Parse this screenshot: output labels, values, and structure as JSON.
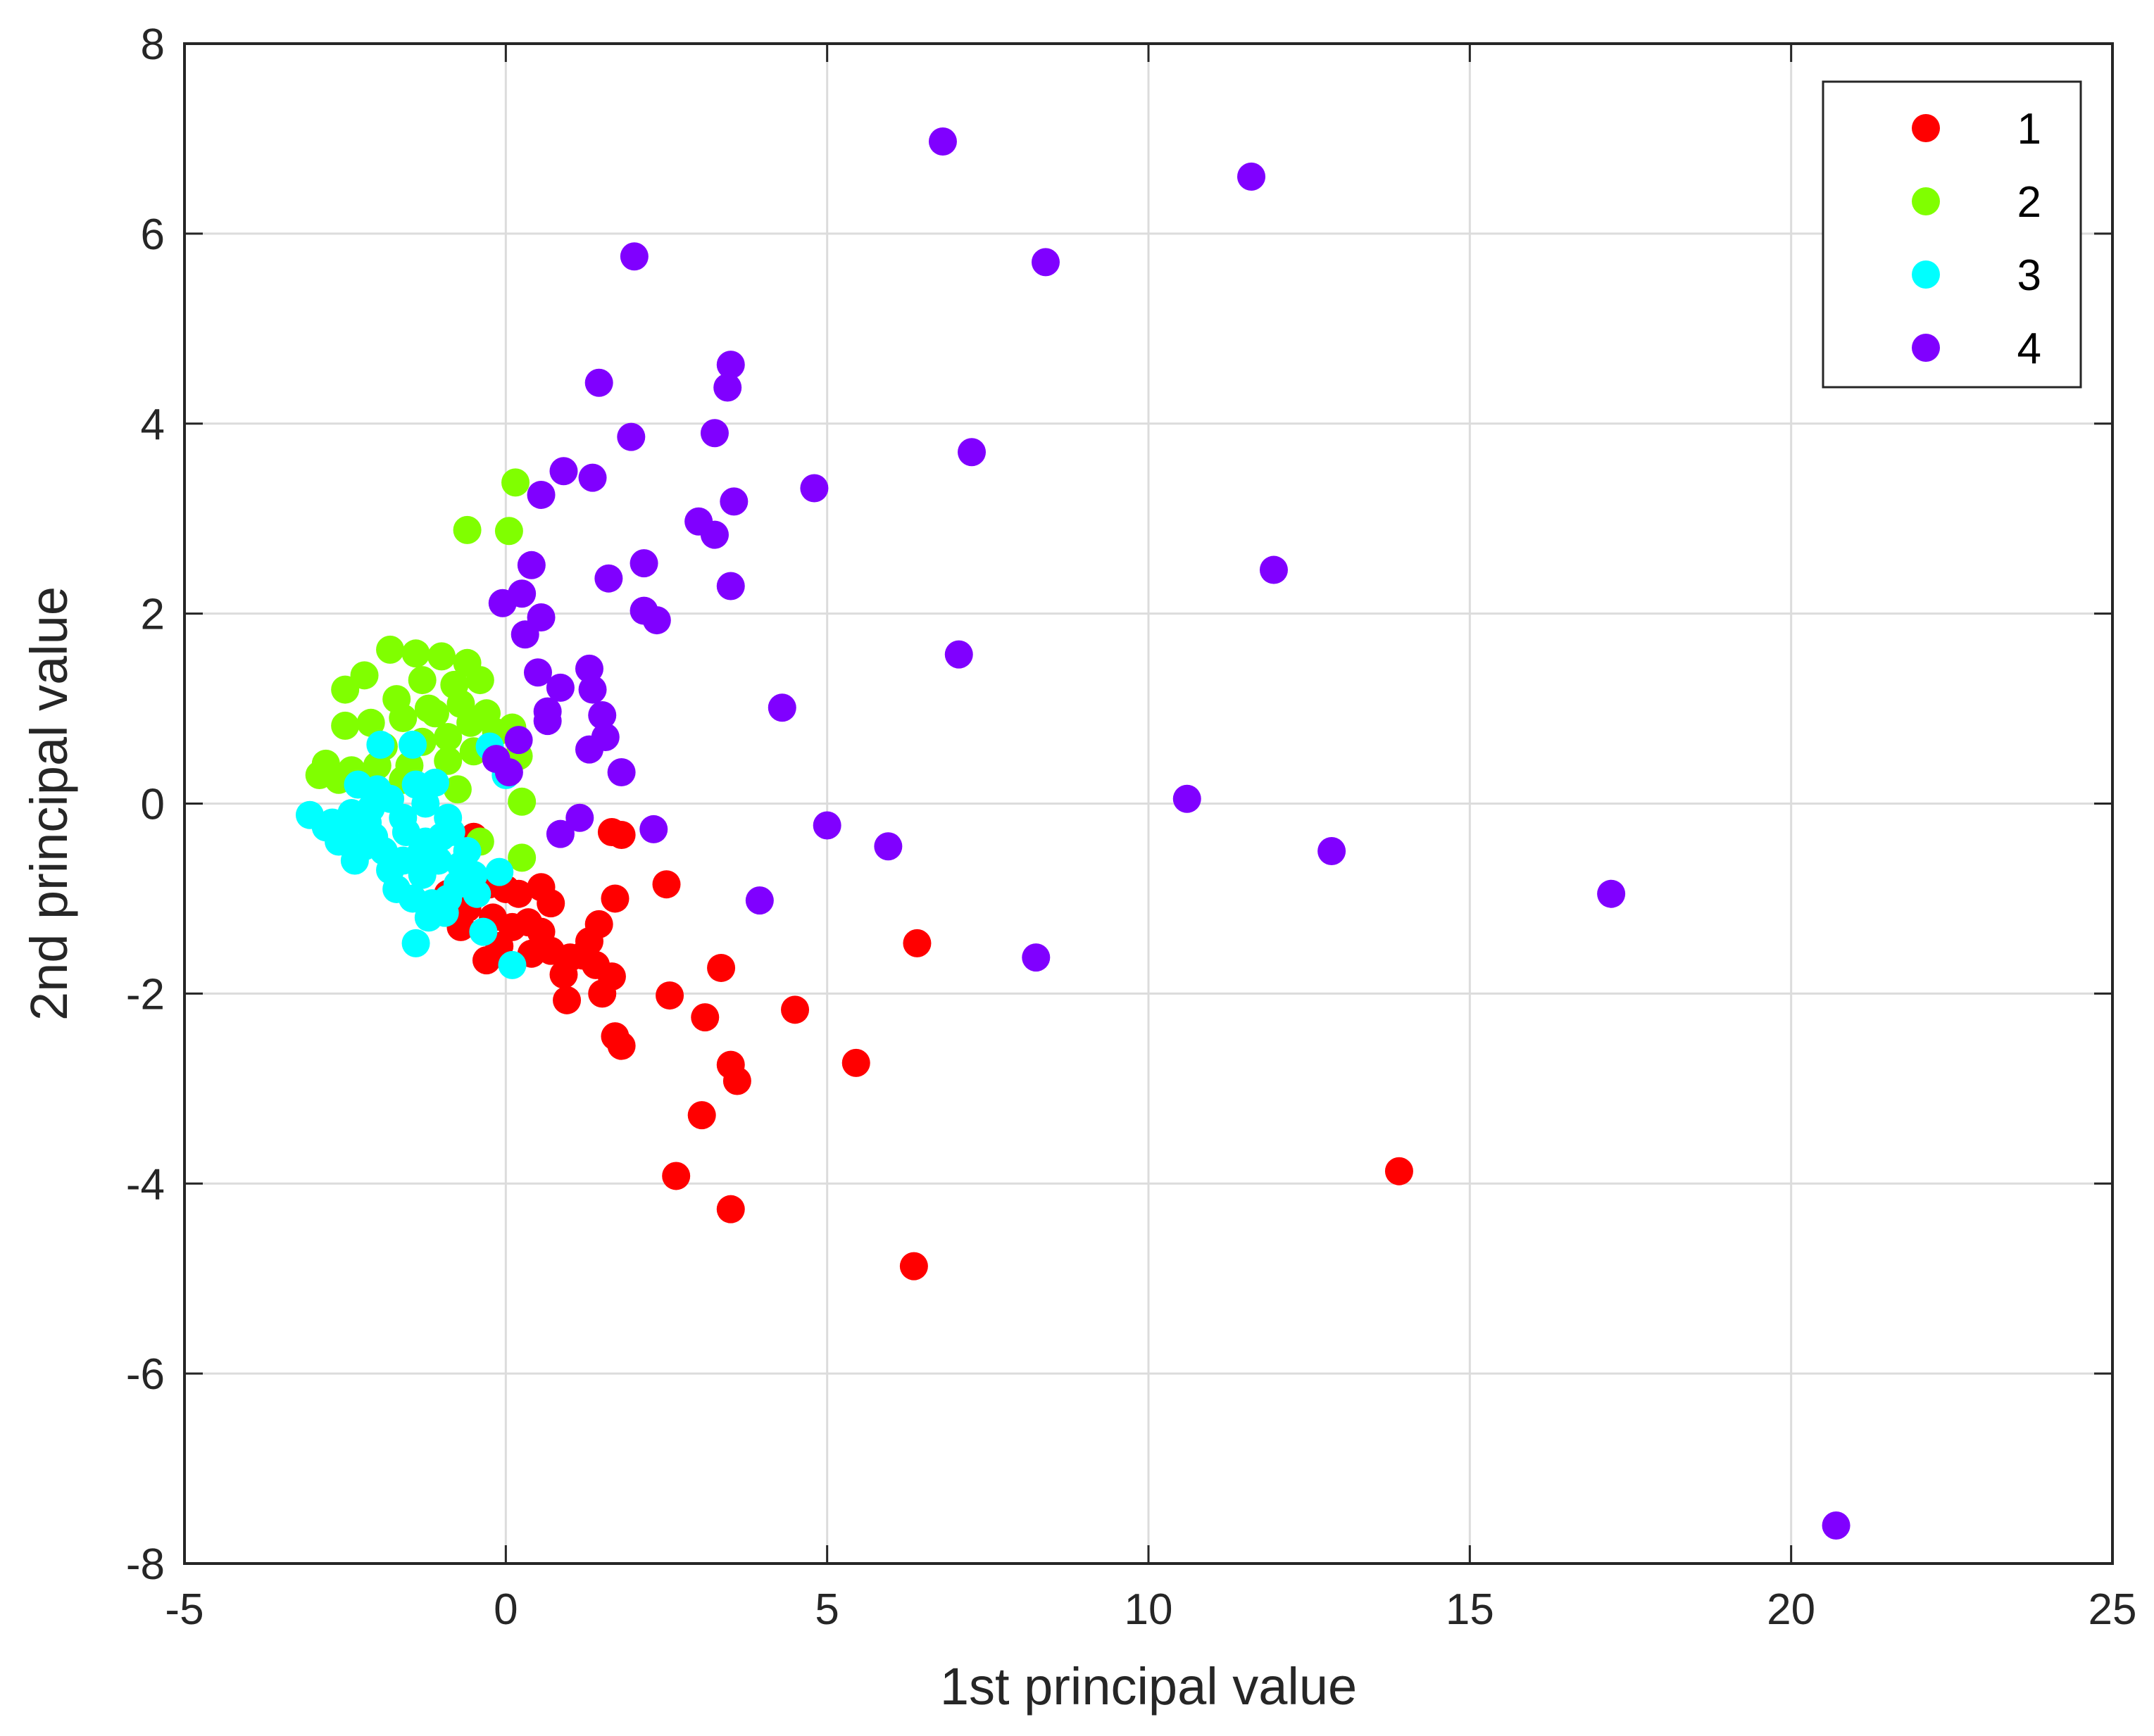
{
  "chart_data": {
    "type": "scatter",
    "title": "",
    "xlabel": "1st principal value",
    "ylabel": "2nd principal value",
    "xlim": [
      -5,
      25
    ],
    "ylim": [
      -8,
      8
    ],
    "xticks": [
      -5,
      0,
      5,
      10,
      15,
      20,
      25
    ],
    "yticks": [
      -8,
      -6,
      -4,
      -2,
      0,
      2,
      4,
      6,
      8
    ],
    "grid": true,
    "legend_position": "top-right",
    "series": [
      {
        "name": "1",
        "color": "#ff0000",
        "points": [
          [
            13.9,
            -3.87
          ],
          [
            6.4,
            -1.47
          ],
          [
            6.35,
            -4.87
          ],
          [
            5.45,
            -2.73
          ],
          [
            4.5,
            -2.17
          ],
          [
            3.35,
            -1.73
          ],
          [
            3.6,
            -2.92
          ],
          [
            3.5,
            -2.75
          ],
          [
            3.5,
            -4.27
          ],
          [
            3.1,
            -2.25
          ],
          [
            3.05,
            -3.28
          ],
          [
            2.65,
            -3.92
          ],
          [
            2.55,
            -2.02
          ],
          [
            2.5,
            -0.85
          ],
          [
            1.8,
            -0.33
          ],
          [
            1.65,
            -0.3
          ],
          [
            1.7,
            -1.0
          ],
          [
            1.65,
            -1.82
          ],
          [
            1.7,
            -2.45
          ],
          [
            1.8,
            -2.55
          ],
          [
            1.5,
            -2.0
          ],
          [
            1.4,
            -1.7
          ],
          [
            1.45,
            -1.27
          ],
          [
            1.3,
            -1.45
          ],
          [
            1.2,
            -1.6
          ],
          [
            1.0,
            -1.62
          ],
          [
            0.95,
            -2.07
          ],
          [
            0.9,
            -1.8
          ],
          [
            0.7,
            -1.05
          ],
          [
            0.7,
            -1.55
          ],
          [
            0.55,
            -1.35
          ],
          [
            0.55,
            -0.88
          ],
          [
            0.4,
            -1.58
          ],
          [
            0.35,
            -1.25
          ],
          [
            0.2,
            -0.95
          ],
          [
            0.1,
            -1.3
          ],
          [
            0.0,
            -0.9
          ],
          [
            -0.1,
            -1.5
          ],
          [
            -0.2,
            -1.2
          ],
          [
            -0.25,
            -0.85
          ],
          [
            -0.3,
            -1.65
          ],
          [
            -0.5,
            -0.35
          ],
          [
            -0.6,
            -1.1
          ],
          [
            -0.7,
            -1.3
          ],
          [
            -0.9,
            -0.95
          ]
        ]
      },
      {
        "name": "2",
        "color": "#80ff00",
        "points": [
          [
            0.15,
            3.38
          ],
          [
            0.05,
            2.87
          ],
          [
            -0.6,
            2.88
          ],
          [
            -1.8,
            1.62
          ],
          [
            -1.4,
            1.58
          ],
          [
            -1.0,
            1.55
          ],
          [
            -0.6,
            1.48
          ],
          [
            -2.2,
            1.35
          ],
          [
            -2.5,
            1.2
          ],
          [
            -1.7,
            1.1
          ],
          [
            -1.3,
            1.3
          ],
          [
            -0.8,
            1.25
          ],
          [
            -0.4,
            1.3
          ],
          [
            -2.1,
            0.85
          ],
          [
            -2.5,
            0.82
          ],
          [
            -1.6,
            0.9
          ],
          [
            -1.1,
            0.95
          ],
          [
            -0.7,
            1.05
          ],
          [
            -0.3,
            0.95
          ],
          [
            -0.15,
            0.75
          ],
          [
            0.1,
            0.8
          ],
          [
            -1.9,
            0.6
          ],
          [
            -1.3,
            0.65
          ],
          [
            -0.9,
            0.7
          ],
          [
            -0.5,
            0.55
          ],
          [
            -2.8,
            0.42
          ],
          [
            -2.4,
            0.35
          ],
          [
            -2.0,
            0.4
          ],
          [
            -1.5,
            0.4
          ],
          [
            -0.9,
            0.45
          ],
          [
            0.2,
            0.5
          ],
          [
            -2.6,
            0.25
          ],
          [
            -2.9,
            0.3
          ],
          [
            -0.75,
            0.15
          ],
          [
            0.25,
            0.02
          ],
          [
            -0.4,
            -0.4
          ],
          [
            0.25,
            -0.57
          ],
          [
            -1.2,
            1.0
          ],
          [
            -0.55,
            0.85
          ],
          [
            -1.6,
            0.25
          ]
        ]
      },
      {
        "name": "3",
        "color": "#00ffff",
        "points": [
          [
            0.1,
            -1.7
          ],
          [
            -0.35,
            -1.35
          ],
          [
            -0.1,
            -0.72
          ],
          [
            0.0,
            0.3
          ],
          [
            -0.25,
            0.6
          ],
          [
            -1.4,
            -1.47
          ],
          [
            -0.9,
            -1.0
          ],
          [
            -1.2,
            -1.2
          ],
          [
            -0.75,
            -0.85
          ],
          [
            -1.05,
            -0.6
          ],
          [
            -1.3,
            -0.75
          ],
          [
            -1.6,
            -0.6
          ],
          [
            -1.9,
            -0.5
          ],
          [
            -2.2,
            -0.45
          ],
          [
            -2.5,
            -0.35
          ],
          [
            -2.8,
            -0.25
          ],
          [
            -3.05,
            -0.12
          ],
          [
            -2.7,
            -0.2
          ],
          [
            -2.4,
            -0.1
          ],
          [
            -2.1,
            -0.05
          ],
          [
            -1.8,
            0.05
          ],
          [
            -2.0,
            0.15
          ],
          [
            -2.3,
            0.2
          ],
          [
            -1.4,
            0.2
          ],
          [
            -1.1,
            0.22
          ],
          [
            -0.85,
            -0.3
          ],
          [
            -0.6,
            -0.5
          ],
          [
            -0.5,
            -0.75
          ],
          [
            -0.45,
            -0.95
          ],
          [
            -1.55,
            -0.3
          ],
          [
            -1.25,
            -0.4
          ],
          [
            -1.0,
            -0.35
          ],
          [
            -1.7,
            -0.9
          ],
          [
            -1.45,
            -1.0
          ],
          [
            -1.15,
            -1.05
          ],
          [
            -0.95,
            -1.15
          ],
          [
            -1.8,
            -0.7
          ],
          [
            -2.05,
            -0.35
          ],
          [
            -2.6,
            -0.4
          ],
          [
            -2.35,
            -0.6
          ],
          [
            -1.95,
            0.62
          ],
          [
            -1.45,
            0.62
          ],
          [
            -1.25,
            0.0
          ],
          [
            -0.9,
            -0.15
          ],
          [
            -1.6,
            -0.15
          ],
          [
            -0.7,
            -0.65
          ],
          [
            -2.15,
            -0.2
          ],
          [
            -1.35,
            -0.55
          ]
        ]
      },
      {
        "name": "4",
        "color": "#8000ff",
        "points": [
          [
            6.8,
            6.97
          ],
          [
            11.6,
            6.6
          ],
          [
            8.4,
            5.7
          ],
          [
            2.0,
            5.76
          ],
          [
            3.5,
            4.62
          ],
          [
            3.45,
            4.38
          ],
          [
            1.45,
            4.43
          ],
          [
            3.25,
            3.9
          ],
          [
            7.25,
            3.7
          ],
          [
            1.95,
            3.86
          ],
          [
            4.8,
            3.32
          ],
          [
            3.55,
            3.18
          ],
          [
            0.9,
            3.5
          ],
          [
            1.35,
            3.43
          ],
          [
            0.55,
            3.25
          ],
          [
            3.0,
            2.97
          ],
          [
            3.25,
            2.83
          ],
          [
            11.95,
            2.46
          ],
          [
            0.4,
            2.51
          ],
          [
            2.15,
            2.53
          ],
          [
            1.6,
            2.37
          ],
          [
            3.5,
            2.29
          ],
          [
            0.25,
            2.21
          ],
          [
            -0.05,
            2.11
          ],
          [
            2.15,
            2.03
          ],
          [
            2.35,
            1.93
          ],
          [
            0.55,
            1.96
          ],
          [
            0.3,
            1.78
          ],
          [
            7.05,
            1.57
          ],
          [
            1.3,
            1.42
          ],
          [
            0.5,
            1.38
          ],
          [
            0.85,
            1.22
          ],
          [
            1.35,
            1.2
          ],
          [
            4.3,
            1.01
          ],
          [
            1.5,
            0.93
          ],
          [
            0.65,
            0.97
          ],
          [
            0.65,
            0.87
          ],
          [
            1.55,
            0.7
          ],
          [
            0.2,
            0.67
          ],
          [
            1.3,
            0.57
          ],
          [
            -0.15,
            0.47
          ],
          [
            1.8,
            0.33
          ],
          [
            0.05,
            0.33
          ],
          [
            10.6,
            0.05
          ],
          [
            1.15,
            -0.15
          ],
          [
            0.85,
            -0.32
          ],
          [
            2.3,
            -0.27
          ],
          [
            5.0,
            -0.23
          ],
          [
            5.95,
            -0.45
          ],
          [
            12.85,
            -0.5
          ],
          [
            17.2,
            -0.95
          ],
          [
            3.95,
            -1.02
          ],
          [
            8.25,
            -1.62
          ],
          [
            20.7,
            -7.6
          ]
        ]
      }
    ]
  }
}
